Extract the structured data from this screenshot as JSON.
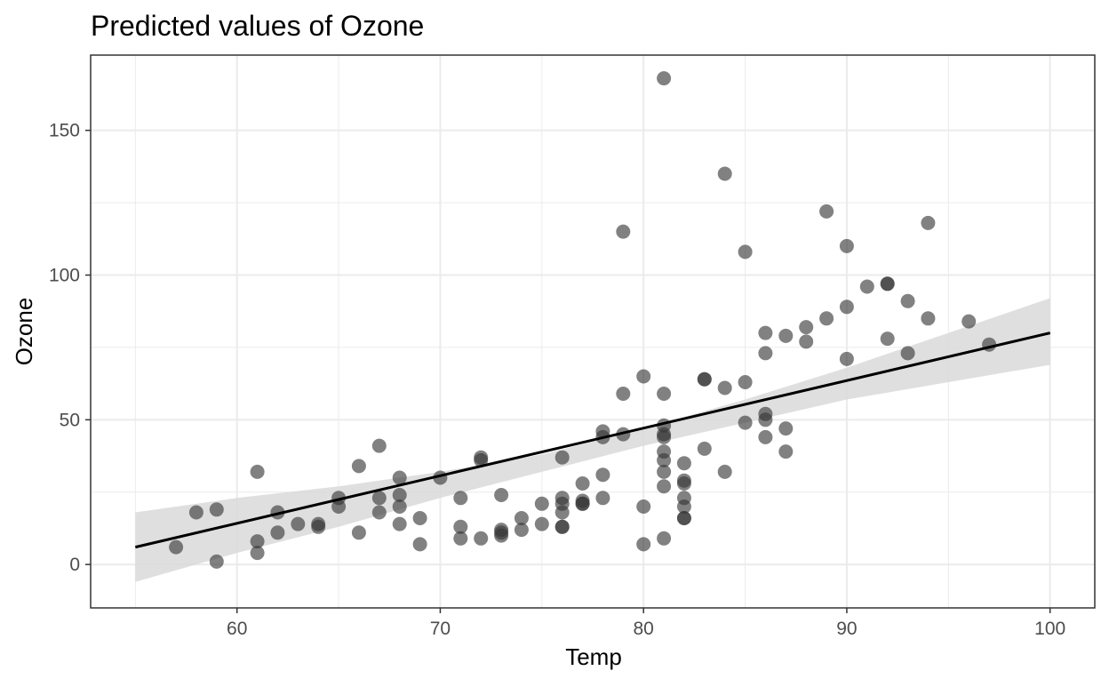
{
  "chart_data": {
    "type": "scatter",
    "title": "Predicted values of Ozone",
    "xlabel": "Temp",
    "ylabel": "Ozone",
    "xlim": [
      52.8,
      102.2
    ],
    "ylim": [
      -15,
      176
    ],
    "x_ticks": [
      60,
      70,
      80,
      90,
      100
    ],
    "x_tick_labels": [
      "60",
      "70",
      "80",
      "90",
      "100"
    ],
    "y_ticks": [
      0,
      50,
      100,
      150
    ],
    "y_tick_labels": [
      "0",
      "50",
      "100",
      "150"
    ],
    "grid": true,
    "legend": "none",
    "colors": {
      "points": "#333333",
      "line": "#000000",
      "ribbon": "#d9d9d9",
      "grid": "#ebebeb",
      "panel_border": "#333333"
    },
    "fit_line": {
      "x": [
        55,
        100
      ],
      "y": [
        6,
        80
      ]
    },
    "confidence_band": {
      "x": [
        55,
        60,
        65,
        70,
        75,
        80,
        85,
        90,
        95,
        100
      ],
      "lower": [
        -6,
        4,
        13,
        23,
        32,
        41,
        49,
        57,
        63,
        69
      ],
      "upper": [
        18,
        23,
        27,
        32,
        38,
        47,
        57,
        68,
        80,
        92
      ]
    },
    "points": [
      [
        57,
        6
      ],
      [
        58,
        18
      ],
      [
        59,
        19
      ],
      [
        59,
        1
      ],
      [
        61,
        32
      ],
      [
        61,
        8
      ],
      [
        61,
        4
      ],
      [
        62,
        18
      ],
      [
        62,
        11
      ],
      [
        63,
        14
      ],
      [
        64,
        14
      ],
      [
        64,
        13
      ],
      [
        65,
        23
      ],
      [
        65,
        20
      ],
      [
        66,
        34
      ],
      [
        66,
        11
      ],
      [
        67,
        41
      ],
      [
        67,
        23
      ],
      [
        67,
        18
      ],
      [
        68,
        30
      ],
      [
        68,
        24
      ],
      [
        68,
        20
      ],
      [
        68,
        14
      ],
      [
        69,
        16
      ],
      [
        69,
        7
      ],
      [
        70,
        30
      ],
      [
        71,
        23
      ],
      [
        71,
        13
      ],
      [
        71,
        9
      ],
      [
        72,
        37
      ],
      [
        72,
        36
      ],
      [
        72,
        9
      ],
      [
        73,
        24
      ],
      [
        73,
        12
      ],
      [
        73,
        11
      ],
      [
        73,
        10
      ],
      [
        74,
        16
      ],
      [
        74,
        12
      ],
      [
        75,
        21
      ],
      [
        75,
        14
      ],
      [
        76,
        37
      ],
      [
        76,
        23
      ],
      [
        76,
        21
      ],
      [
        76,
        18
      ],
      [
        76,
        13
      ],
      [
        76,
        13
      ],
      [
        77,
        28
      ],
      [
        77,
        22
      ],
      [
        77,
        21
      ],
      [
        77,
        21
      ],
      [
        78,
        46
      ],
      [
        78,
        44
      ],
      [
        78,
        31
      ],
      [
        78,
        23
      ],
      [
        79,
        115
      ],
      [
        79,
        59
      ],
      [
        79,
        45
      ],
      [
        80,
        65
      ],
      [
        80,
        20
      ],
      [
        80,
        7
      ],
      [
        81,
        168
      ],
      [
        81,
        59
      ],
      [
        81,
        48
      ],
      [
        81,
        45
      ],
      [
        81,
        44
      ],
      [
        81,
        39
      ],
      [
        81,
        36
      ],
      [
        81,
        32
      ],
      [
        81,
        27
      ],
      [
        81,
        9
      ],
      [
        82,
        35
      ],
      [
        82,
        29
      ],
      [
        82,
        28
      ],
      [
        82,
        23
      ],
      [
        82,
        20
      ],
      [
        82,
        16
      ],
      [
        82,
        16
      ],
      [
        83,
        64
      ],
      [
        83,
        64
      ],
      [
        83,
        40
      ],
      [
        84,
        135
      ],
      [
        84,
        61
      ],
      [
        84,
        32
      ],
      [
        85,
        108
      ],
      [
        85,
        63
      ],
      [
        85,
        49
      ],
      [
        86,
        80
      ],
      [
        86,
        73
      ],
      [
        86,
        52
      ],
      [
        86,
        50
      ],
      [
        86,
        44
      ],
      [
        87,
        79
      ],
      [
        87,
        47
      ],
      [
        87,
        39
      ],
      [
        88,
        82
      ],
      [
        88,
        77
      ],
      [
        89,
        122
      ],
      [
        89,
        85
      ],
      [
        90,
        110
      ],
      [
        90,
        89
      ],
      [
        90,
        71
      ],
      [
        91,
        96
      ],
      [
        92,
        97
      ],
      [
        92,
        97
      ],
      [
        92,
        78
      ],
      [
        93,
        91
      ],
      [
        93,
        73
      ],
      [
        94,
        118
      ],
      [
        94,
        85
      ],
      [
        96,
        84
      ],
      [
        97,
        76
      ]
    ]
  }
}
